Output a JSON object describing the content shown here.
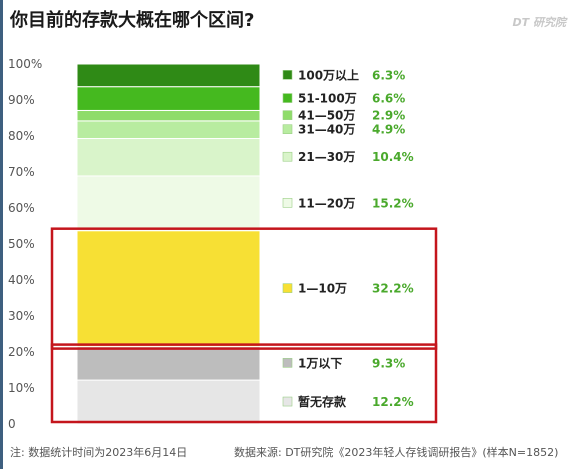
{
  "title": "你目前的存款大概在哪个区间?",
  "brand": "DT 研究院",
  "footer": {
    "note": "注: 数据统计时间为2023年6月14日",
    "source": "数据来源: DT研究院《2023年轻人存钱调研报告》(样本N=1852)"
  },
  "chart_data": {
    "type": "bar",
    "stacked": true,
    "title": "你目前的存款大概在哪个区间?",
    "xlabel": "",
    "ylabel": "",
    "ylim": [
      0,
      100
    ],
    "yticks": [
      "0",
      "10%",
      "20%",
      "30%",
      "40%",
      "50%",
      "60%",
      "70%",
      "80%",
      "90%",
      "100%"
    ],
    "grid": false,
    "legend_placement": "right",
    "segments": [
      {
        "label": "暂无存款",
        "value": 12.2,
        "value_label": "12.2%",
        "color": "#e6e6e6"
      },
      {
        "label": "1万以下",
        "value": 9.3,
        "value_label": "9.3%",
        "color": "#bdbdbd"
      },
      {
        "label": "1—10万",
        "value": 32.2,
        "value_label": "32.2%",
        "color": "#f7e034"
      },
      {
        "label": "11—20万",
        "value": 15.2,
        "value_label": "15.2%",
        "color": "#eefae6"
      },
      {
        "label": "21—30万",
        "value": 10.4,
        "value_label": "10.4%",
        "color": "#d9f4ca"
      },
      {
        "label": "31—40万",
        "value": 4.9,
        "value_label": "4.9%",
        "color": "#b8eca0"
      },
      {
        "label": "41—50万",
        "value": 2.9,
        "value_label": "2.9%",
        "color": "#8fdc6a"
      },
      {
        "label": "51-100万",
        "value": 6.6,
        "value_label": "6.6%",
        "color": "#45b91f"
      },
      {
        "label": "100万以上",
        "value": 6.3,
        "value_label": "6.3%",
        "color": "#2f8a16"
      }
    ],
    "highlight_boxes": [
      {
        "from_segment": "1—10万",
        "color": "#c4151c"
      },
      {
        "from_segment": "暂无存款",
        "to_segment": "1万以下",
        "color": "#c4151c"
      }
    ],
    "value_label_color": "#4aa92c"
  }
}
